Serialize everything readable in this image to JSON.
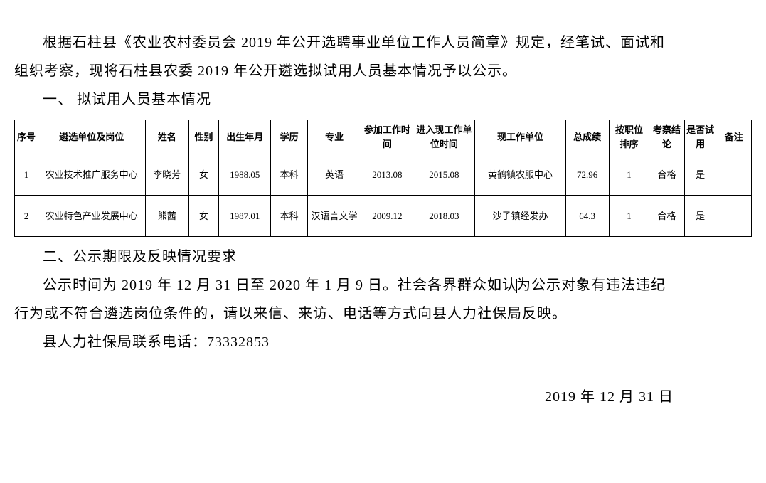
{
  "intro": {
    "p1_part1": "根据石柱县《农业农村委员会 2019 年公开选聘事业单位工作人员简章》规定，经笔试、面试和",
    "p1_part2": "组织考察，现将石柱县农委 2019 年公开遴选拟试用人员基本情况予以公示。"
  },
  "section1_title": "一、 拟试用人员基本情况",
  "table": {
    "headers": {
      "seq": "序号",
      "unit": "遴选单位及岗位",
      "name": "姓名",
      "gender": "性别",
      "birth": "出生年月",
      "edu": "学历",
      "major": "专业",
      "worktime": "参加工作时间",
      "currenttime": "进入现工作单位时间",
      "currentunit": "现工作单位",
      "score": "总成绩",
      "rank": "按职位排序",
      "result": "考察结论",
      "trial": "是否试用",
      "remark": "备注"
    },
    "rows": [
      {
        "seq": "1",
        "unit": "农业技术推广服务中心",
        "name": "李晓芳",
        "gender": "女",
        "birth": "1988.05",
        "edu": "本科",
        "major": "英语",
        "worktime": "2013.08",
        "currenttime": "2015.08",
        "currentunit": "黄鹤镇农服中心",
        "score": "72.96",
        "rank": "1",
        "result": "合格",
        "trial": "是",
        "remark": ""
      },
      {
        "seq": "2",
        "unit": "农业特色产业发展中心",
        "name": "熊茜",
        "gender": "女",
        "birth": "1987.01",
        "edu": "本科",
        "major": "汉语言文学",
        "worktime": "2009.12",
        "currenttime": "2018.03",
        "currentunit": "沙子镇经发办",
        "score": "64.3",
        "rank": "1",
        "result": "合格",
        "trial": "是",
        "remark": ""
      }
    ]
  },
  "section2_title": "二、公示期限及反映情况要求",
  "publicity": {
    "p1_part1": "公示时间为 2019 年 12 月 31 日至 2020 年 1 月 9 日。社会各界群众如认",
    "p1_part2": "为公示对象有违法违纪",
    "p2": "行为或不符合遴选岗位条件的，请以来信、来访、电话等方式向县人力社保局反映。"
  },
  "contact": "县人力社保局联系电话：73332853",
  "date": "2019 年 12 月 31 日",
  "styling": {
    "body_font": "SimSun",
    "body_fontsize": 20,
    "table_fontsize": 13,
    "text_color": "#000000",
    "background_color": "#ffffff",
    "border_color": "#000000",
    "line_height": 2.0
  }
}
